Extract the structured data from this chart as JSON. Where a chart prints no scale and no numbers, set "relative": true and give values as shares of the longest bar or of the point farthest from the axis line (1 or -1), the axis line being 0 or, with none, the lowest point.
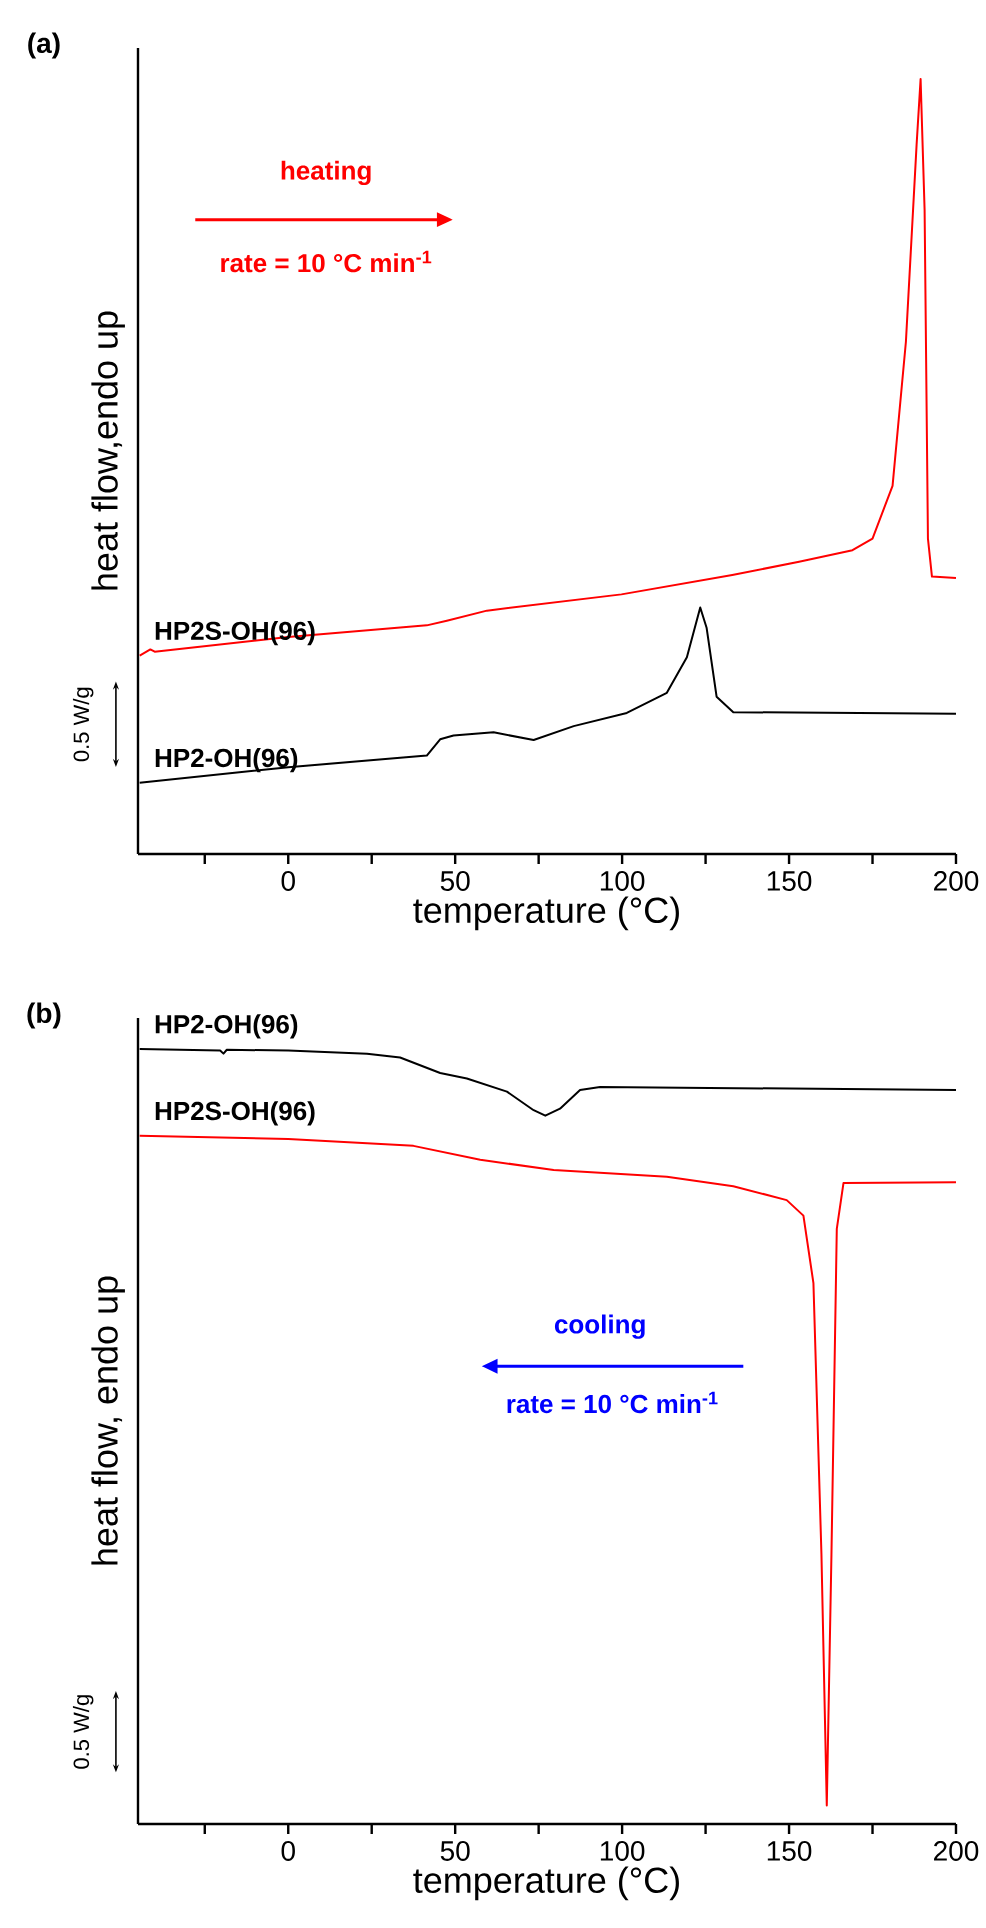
{
  "chart_data": [
    {
      "type": "line",
      "title": "(a)",
      "xlabel": "temperature (°C)",
      "ylabel": "heat flow,endo up",
      "relative": true,
      "xlim": [
        -45,
        200
      ],
      "xticks": [
        {
          "value": -25,
          "label": null
        },
        0,
        {
          "value": 25,
          "label": null
        },
        50,
        {
          "value": 75,
          "label": null
        },
        100,
        {
          "value": 125,
          "label": null
        },
        150,
        {
          "value": 175,
          "label": null
        },
        200
      ],
      "annotations": [
        "heating",
        "rate = 10 °C min$^{-1}$",
        "0.5 W/g"
      ],
      "series": [
        {
          "name": "HP2S-OH(96)",
          "color": "#ff0000",
          "x": [
            -44.5,
            -41.3,
            -40,
            0,
            41.5,
            47.5,
            59.5,
            99.8,
            133,
            153,
            169,
            175,
            181,
            185,
            188.2,
            189.4,
            190.6,
            191.6,
            192.8,
            200
          ],
          "values": [
            0.256,
            0.264,
            0.261,
            0.28,
            0.295,
            0.301,
            0.314,
            0.335,
            0.36,
            0.377,
            0.392,
            0.407,
            0.475,
            0.661,
            0.915,
            1.0,
            0.831,
            0.407,
            0.358,
            0.356
          ]
        },
        {
          "name": "HP2-OH(96)",
          "color": "#000000",
          "x": [
            -44.5,
            0,
            41.5,
            45.5,
            49.5,
            61.5,
            73.5,
            85.5,
            101.4,
            113.4,
            119.4,
            123.4,
            125.3,
            128.3,
            133.3,
            200
          ],
          "values": [
            0.092,
            0.112,
            0.127,
            0.148,
            0.153,
            0.157,
            0.147,
            0.165,
            0.182,
            0.208,
            0.254,
            0.318,
            0.292,
            0.203,
            0.183,
            0.181
          ]
        }
      ]
    },
    {
      "type": "line",
      "title": "(b)",
      "xlabel": "temperature (°C)",
      "ylabel": "heat flow, endo up",
      "relative": true,
      "xlim": [
        -45,
        200
      ],
      "xticks": [
        {
          "value": -25,
          "label": null
        },
        0,
        {
          "value": 25,
          "label": null
        },
        50,
        {
          "value": 75,
          "label": null
        },
        100,
        {
          "value": 125,
          "label": null
        },
        150,
        {
          "value": 175,
          "label": null
        },
        200
      ],
      "annotations": [
        "cooling",
        "rate = 10 °C min$^{-1}$",
        "0.5 W/g"
      ],
      "series": [
        {
          "name": "HP2-OH(96)",
          "color": "#000000",
          "x": [
            -44.5,
            -20.4,
            -19.4,
            -18.4,
            0,
            23.6,
            33.5,
            45.5,
            53.5,
            65.5,
            73.5,
            77,
            81.4,
            87.4,
            93.4,
            200
          ],
          "values": [
            1.0,
            0.998,
            0.994,
            0.999,
            0.998,
            0.994,
            0.989,
            0.969,
            0.962,
            0.945,
            0.921,
            0.914,
            0.923,
            0.947,
            0.951,
            0.947
          ]
        },
        {
          "name": "HP2S-OH(96)",
          "color": "#ff0000",
          "x": [
            -44.5,
            0,
            37.5,
            57.5,
            79.5,
            113.4,
            133.3,
            149.3,
            154.3,
            157.3,
            159.7,
            161.3,
            162.7,
            164.3,
            166.3,
            200
          ],
          "values": [
            0.888,
            0.884,
            0.875,
            0.857,
            0.844,
            0.835,
            0.823,
            0.805,
            0.785,
            0.698,
            0.348,
            0.024,
            0.348,
            0.768,
            0.827,
            0.828
          ]
        }
      ]
    }
  ]
}
